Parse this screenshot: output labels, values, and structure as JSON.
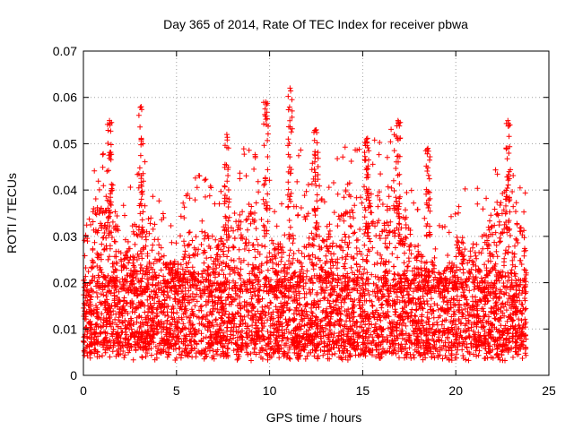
{
  "chart_data": {
    "type": "scatter",
    "title": "Day 365 of 2014, Rate Of TEC Index for receiver pbwa",
    "xlabel": "GPS time / hours",
    "ylabel": "ROTI / TECUs",
    "xlim": [
      0,
      25
    ],
    "ylim": [
      0,
      0.07
    ],
    "xticks": [
      "0",
      "5",
      "10",
      "15",
      "20",
      "25"
    ],
    "yticks": [
      "0",
      "0.01",
      "0.02",
      "0.03",
      "0.04",
      "0.05",
      "0.06",
      "0.07"
    ],
    "grid": true,
    "marker": "plus",
    "color": "#ff0000",
    "series": [
      {
        "name": "ROTI",
        "x_range": [
          0,
          23.8
        ],
        "baseline_range": [
          0.005,
          0.022
        ],
        "notable_peaks": [
          {
            "x": 1.4,
            "y": 0.055
          },
          {
            "x": 3.1,
            "y": 0.058
          },
          {
            "x": 7.7,
            "y": 0.052
          },
          {
            "x": 9.8,
            "y": 0.059
          },
          {
            "x": 11.1,
            "y": 0.062
          },
          {
            "x": 12.5,
            "y": 0.053
          },
          {
            "x": 15.2,
            "y": 0.051
          },
          {
            "x": 16.9,
            "y": 0.055
          },
          {
            "x": 18.5,
            "y": 0.049
          },
          {
            "x": 22.8,
            "y": 0.055
          }
        ]
      }
    ]
  }
}
